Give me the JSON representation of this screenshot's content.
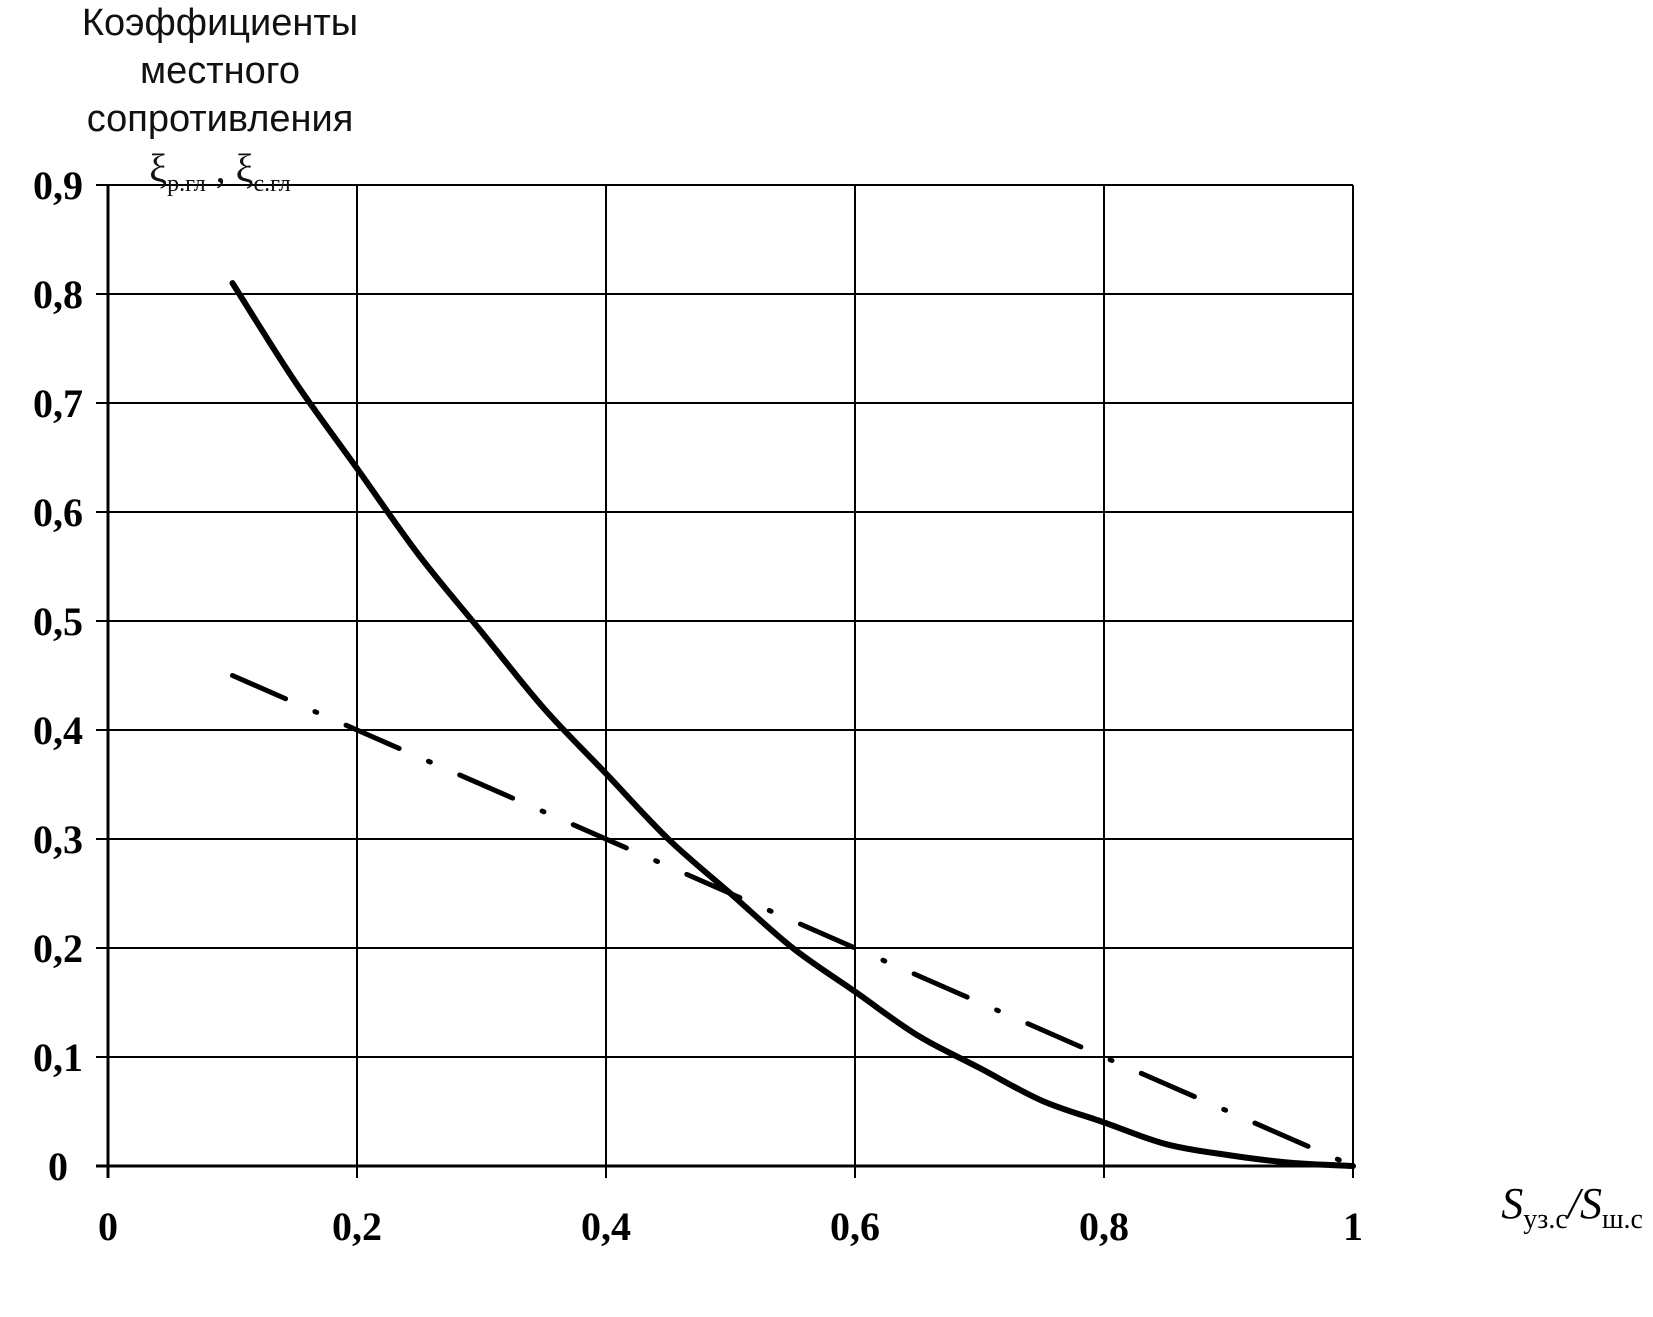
{
  "chart_data": {
    "type": "line",
    "ylabel_lines": [
      "Коэффициенты",
      "местного",
      "сопротивления"
    ],
    "ylabel_symbols": {
      "first_symbol": "ξ",
      "first_sub": "р.гл",
      "separator": " , ",
      "second_symbol": "ξ",
      "second_sub": "с.гл"
    },
    "xlabel": {
      "numerator_symbol": "S",
      "numerator_sub": "уз.с",
      "slash": "/",
      "denominator_symbol": "S",
      "denominator_sub": "ш.с"
    },
    "xlim": [
      0,
      1
    ],
    "ylim": [
      0,
      0.9
    ],
    "x_ticks": [
      "0",
      "0,2",
      "0,4",
      "0,6",
      "0,8",
      "1"
    ],
    "y_ticks": [
      "0",
      "0,1",
      "0,2",
      "0,3",
      "0,4",
      "0,5",
      "0,6",
      "0,7",
      "0,8",
      "0,9"
    ],
    "grid": true,
    "series": [
      {
        "style": "solid",
        "color": "#000000",
        "x": [
          0.1,
          0.15,
          0.2,
          0.25,
          0.3,
          0.35,
          0.4,
          0.45,
          0.5,
          0.55,
          0.6,
          0.65,
          0.7,
          0.75,
          0.8,
          0.85,
          0.9,
          0.95,
          1.0
        ],
        "y": [
          0.81,
          0.72,
          0.64,
          0.56,
          0.49,
          0.42,
          0.36,
          0.3,
          0.25,
          0.2,
          0.16,
          0.12,
          0.09,
          0.06,
          0.04,
          0.02,
          0.01,
          0.003,
          0.0
        ]
      },
      {
        "style": "dash-dot",
        "color": "#000000",
        "x": [
          0.1,
          1.0
        ],
        "y": [
          0.45,
          0.0
        ]
      }
    ]
  }
}
